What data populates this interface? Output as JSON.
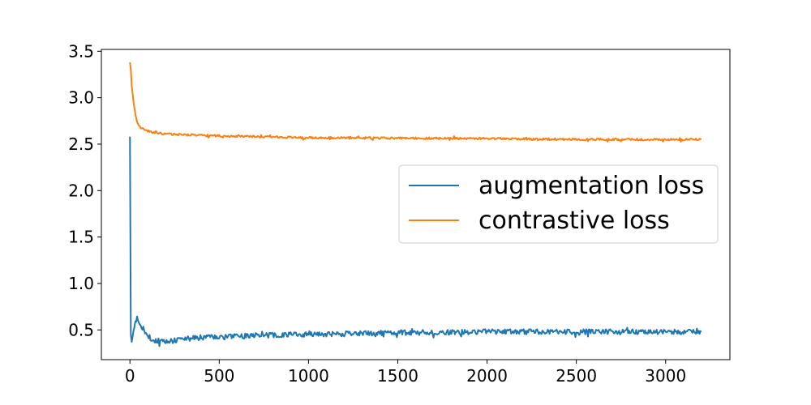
{
  "chart_data": {
    "type": "line",
    "title": "",
    "xlabel": "",
    "ylabel": "",
    "xlim": [
      -160,
      3360
    ],
    "ylim": [
      0.18,
      3.52
    ],
    "xticks": [
      0,
      500,
      1000,
      1500,
      2000,
      2500,
      3000
    ],
    "yticks": [
      0.5,
      1.0,
      1.5,
      2.0,
      2.5,
      3.0,
      3.5
    ],
    "xtick_labels": [
      "0",
      "500",
      "1000",
      "1500",
      "2000",
      "2500",
      "3000"
    ],
    "ytick_labels": [
      "0.5",
      "1.0",
      "1.5",
      "2.0",
      "2.5",
      "3.0",
      "3.5"
    ],
    "grid": false,
    "legend_position": "center-right",
    "x_range": [
      0,
      3200
    ],
    "series": [
      {
        "name": "augmentation loss",
        "color": "#1f77b4",
        "x": [
          0,
          5,
          10,
          20,
          30,
          40,
          50,
          60,
          80,
          100,
          120,
          150,
          200,
          300,
          400,
          500,
          700,
          1000,
          1500,
          2000,
          2500,
          3000,
          3200
        ],
        "y": [
          2.58,
          0.45,
          0.4,
          0.48,
          0.57,
          0.64,
          0.6,
          0.55,
          0.5,
          0.44,
          0.4,
          0.38,
          0.37,
          0.4,
          0.42,
          0.42,
          0.44,
          0.45,
          0.47,
          0.48,
          0.48,
          0.48,
          0.48
        ],
        "noise": 0.028
      },
      {
        "name": "contrastive loss",
        "color": "#ff7f0e",
        "x": [
          0,
          5,
          10,
          20,
          30,
          40,
          60,
          80,
          100,
          150,
          200,
          300,
          500,
          1000,
          1500,
          2000,
          2500,
          3000,
          3200
        ],
        "y": [
          3.38,
          3.3,
          3.15,
          2.95,
          2.82,
          2.74,
          2.68,
          2.65,
          2.64,
          2.62,
          2.61,
          2.6,
          2.59,
          2.57,
          2.565,
          2.56,
          2.55,
          2.55,
          2.55
        ],
        "noise": 0.011
      }
    ]
  }
}
